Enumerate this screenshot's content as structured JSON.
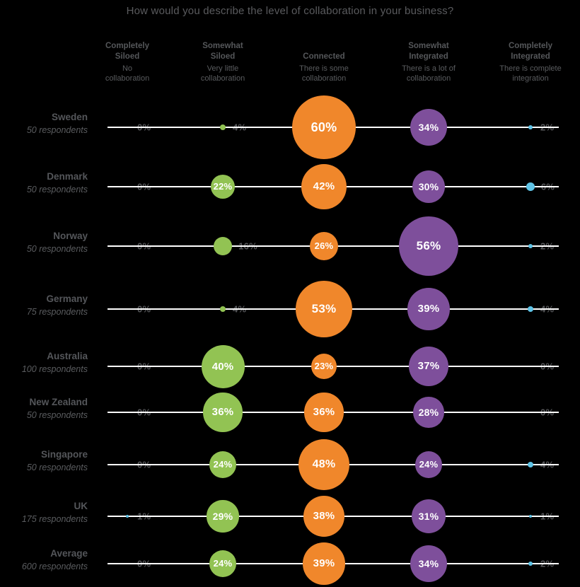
{
  "title": "How would you describe the level of collaboration in your business?",
  "chart_data": {
    "type": "bubble",
    "title": "How would you describe the level of collaboration in your business?",
    "legend_position": "top",
    "value_unit": "%",
    "columns": [
      {
        "label": "Completely\nSiloed",
        "sublabel": "No\ncollaboration",
        "color": "#5fc4e7"
      },
      {
        "label": "Somewhat\nSiloed",
        "sublabel": "Very little\ncollaboration",
        "color": "#92c353"
      },
      {
        "label": "Connected",
        "sublabel": "There is some\ncollaboration",
        "color": "#f0872b"
      },
      {
        "label": "Somewhat\nIntegrated",
        "sublabel": "There is a lot of\ncollaboration",
        "color": "#7e4f9b"
      },
      {
        "label": "Completely\nIntegrated",
        "sublabel": "There is complete\nintegration",
        "color": "#5fc4e7"
      }
    ],
    "rows": [
      {
        "country": "Sweden",
        "respondents": "50 respondents",
        "values": [
          0,
          4,
          60,
          34,
          2
        ]
      },
      {
        "country": "Denmark",
        "respondents": "50 respondents",
        "values": [
          0,
          22,
          42,
          30,
          6
        ]
      },
      {
        "country": "Norway",
        "respondents": "50 respondents",
        "values": [
          0,
          16,
          26,
          56,
          2
        ]
      },
      {
        "country": "Germany",
        "respondents": "75 respondents",
        "values": [
          0,
          4,
          53,
          39,
          4
        ]
      },
      {
        "country": "Australia",
        "respondents": "100 respondents",
        "values": [
          0,
          40,
          23,
          37,
          0
        ]
      },
      {
        "country": "New Zealand",
        "respondents": "50 respondents",
        "values": [
          0,
          36,
          36,
          28,
          0
        ]
      },
      {
        "country": "Singapore",
        "respondents": "50 respondents",
        "values": [
          0,
          24,
          48,
          24,
          4
        ]
      },
      {
        "country": "UK",
        "respondents": "175 respondents",
        "values": [
          1,
          29,
          38,
          31,
          1
        ]
      },
      {
        "country": "Average",
        "respondents": "600 respondents",
        "values": [
          0,
          24,
          39,
          34,
          2
        ]
      }
    ],
    "colors": {
      "background": "#000000",
      "row_line": "#ffffff",
      "percent_label": "#595a5d",
      "bubble_text": "#ffffff",
      "heading_text": "#55575a"
    }
  }
}
